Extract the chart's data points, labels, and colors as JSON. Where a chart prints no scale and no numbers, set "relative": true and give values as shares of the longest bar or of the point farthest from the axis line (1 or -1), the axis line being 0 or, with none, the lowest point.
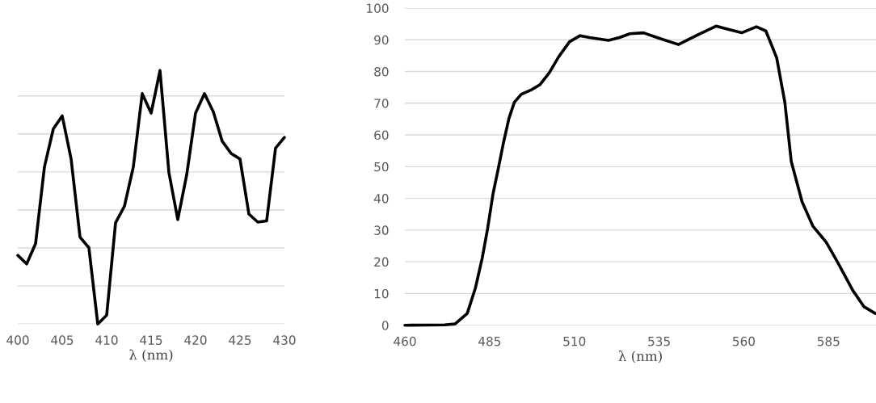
{
  "chart_data": [
    {
      "type": "line",
      "xlabel": "λ (nm)",
      "relative": true,
      "grid": "y",
      "legend": false,
      "marker": "none",
      "line_style": "solid",
      "tick_labels": "x",
      "xlim": [
        400,
        430
      ],
      "xticks": [
        400,
        405,
        410,
        415,
        420,
        425,
        430
      ],
      "series": [
        {
          "color": "#000000",
          "x": [
            400,
            401,
            402,
            403,
            404,
            405,
            406,
            407,
            408,
            409,
            410,
            411,
            412,
            413,
            414,
            415,
            416,
            417,
            418,
            419,
            420,
            421,
            422,
            423,
            424,
            425,
            426,
            427,
            428,
            429,
            430
          ],
          "values": [
            0.271,
            0.237,
            0.317,
            0.62,
            0.77,
            0.821,
            0.651,
            0.343,
            0.301,
            0,
            0.035,
            0.399,
            0.465,
            0.62,
            0.909,
            0.832,
            1,
            0.598,
            0.412,
            0.588,
            0.832,
            0.909,
            0.837,
            0.721,
            0.673,
            0.651,
            0.434,
            0.402,
            0.407,
            0.694,
            0.736
          ]
        }
      ]
    },
    {
      "type": "line",
      "xlabel": "λ (nm)",
      "grid": "y",
      "legend": false,
      "marker": "none",
      "line_style": "solid",
      "xlim": [
        460,
        599
      ],
      "xticks": [
        460,
        485,
        510,
        535,
        560,
        585
      ],
      "ylim": [
        0,
        100
      ],
      "yticks": [
        0,
        10,
        20,
        30,
        40,
        50,
        60,
        70,
        80,
        90,
        100
      ],
      "series": [
        {
          "color": "#000000",
          "x": [
            460,
            471.7,
            474.8,
            478.4,
            480.8,
            482.8,
            484.4,
            486,
            487.5,
            489.1,
            490.7,
            492.3,
            494.3,
            497.1,
            499.8,
            502.6,
            505.4,
            508.6,
            511.7,
            514.5,
            520.1,
            523.3,
            526.4,
            530.4,
            534.4,
            540.7,
            546.3,
            551.8,
            555.8,
            559.4,
            563.7,
            566.5,
            569.7,
            572.1,
            574,
            577.2,
            580.4,
            584.3,
            587.5,
            592.2,
            595.5,
            598.8
          ],
          "values": [
            0,
            0.1,
            0.4,
            3.7,
            11.7,
            21.1,
            30.4,
            41.4,
            49.1,
            57.6,
            65.2,
            70.3,
            72.8,
            74.1,
            75.8,
            79.6,
            84.7,
            89.4,
            91.3,
            90.7,
            89.8,
            90.7,
            91.9,
            92.2,
            90.7,
            88.5,
            91.5,
            94.3,
            93.2,
            92.2,
            94.1,
            92.8,
            84.3,
            70.3,
            51.6,
            38.9,
            31.2,
            26.2,
            20.2,
            10.9,
            5.8,
            3.7
          ]
        }
      ]
    }
  ]
}
